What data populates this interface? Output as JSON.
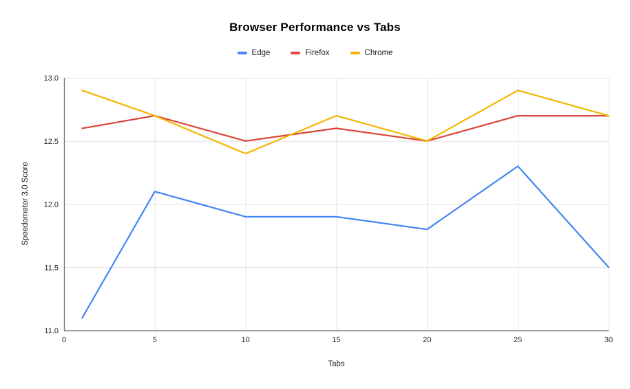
{
  "chart_data": {
    "type": "line",
    "title": "Browser Performance vs Tabs",
    "xlabel": "Tabs",
    "ylabel": "Speedometer 3.0 Score",
    "x": [
      1,
      5,
      10,
      15,
      20,
      25,
      30
    ],
    "series": [
      {
        "name": "Edge",
        "color": "#4285f4",
        "values": [
          11.1,
          12.1,
          11.9,
          11.9,
          11.8,
          12.3,
          11.5
        ]
      },
      {
        "name": "Firefox",
        "color": "#db4437",
        "values": [
          12.6,
          12.7,
          12.5,
          12.6,
          12.5,
          12.7,
          12.7
        ]
      },
      {
        "name": "Chrome",
        "color": "#f4b400",
        "values": [
          12.9,
          12.7,
          12.4,
          12.7,
          12.5,
          12.9,
          12.7
        ]
      }
    ],
    "xlim": [
      0,
      30
    ],
    "ylim": [
      11.0,
      13.0
    ],
    "xticks": [
      0,
      5,
      10,
      15,
      20,
      25,
      30
    ],
    "yticks": [
      11.0,
      11.5,
      12.0,
      12.5,
      13.0
    ],
    "grid": true,
    "legend_position": "top"
  },
  "colors": {
    "background": "#ffffff",
    "gridline": "#e3e3e3",
    "axis_line": "#757575",
    "tick_text": "#222222",
    "title_text": "#000000"
  }
}
